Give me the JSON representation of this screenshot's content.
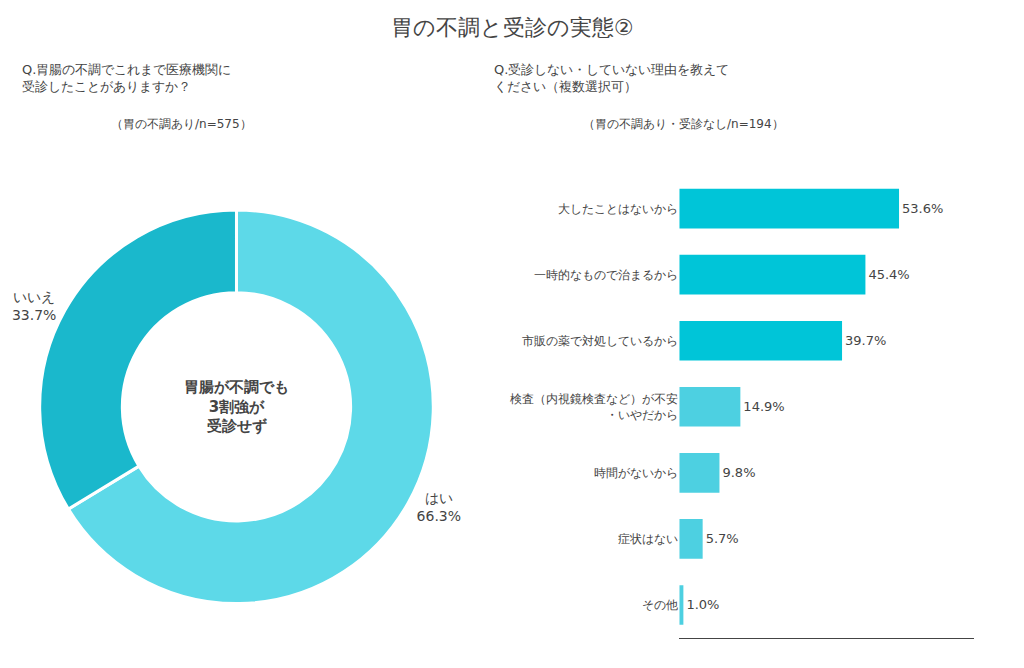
{
  "title": "胃の不調と受診の実態②",
  "chart_data": [
    {
      "type": "pie",
      "title": "Q.胃腸の不調でこれまで医療機関に\n受診したことがありますか？",
      "subtitle": "（胃の不調あり/n=575）",
      "categories": [
        "はい",
        "いいえ"
      ],
      "values": [
        66.3,
        33.7
      ],
      "value_labels": [
        "66.3%",
        "33.7%"
      ],
      "colors": [
        "#5dd9e8",
        "#1ab8cc"
      ],
      "data_labels": true,
      "annotations": [
        "胃腸が不調でも",
        "3割強が",
        "受診せず"
      ]
    },
    {
      "type": "bar",
      "title": "Q.受診しない・していない理由を教えて\nください（複数選択可）",
      "subtitle": "（胃の不調あり・受診なし/n=194）",
      "orientation": "horizontal",
      "categories": [
        "大したことはないから",
        "一時的なもので治まるから",
        "市販の薬で対処しているから",
        "検査（内視鏡検査など）が不安\n・いやだから",
        "時間がないから",
        "症状はない",
        "その他"
      ],
      "values": [
        53.6,
        45.4,
        39.7,
        14.9,
        9.8,
        5.7,
        1.0
      ],
      "value_labels": [
        "53.6%",
        "45.4%",
        "39.7%",
        "14.9%",
        "9.8%",
        "5.7%",
        "1.0%"
      ],
      "colors": [
        "#00c5d8",
        "#00c5d8",
        "#00c5d8",
        "#4dd0e1",
        "#4dd0e1",
        "#4dd0e1",
        "#4dd0e1"
      ],
      "data_labels": true,
      "xlim": [
        0,
        72
      ],
      "tick_labels": "y",
      "grid": false
    }
  ]
}
